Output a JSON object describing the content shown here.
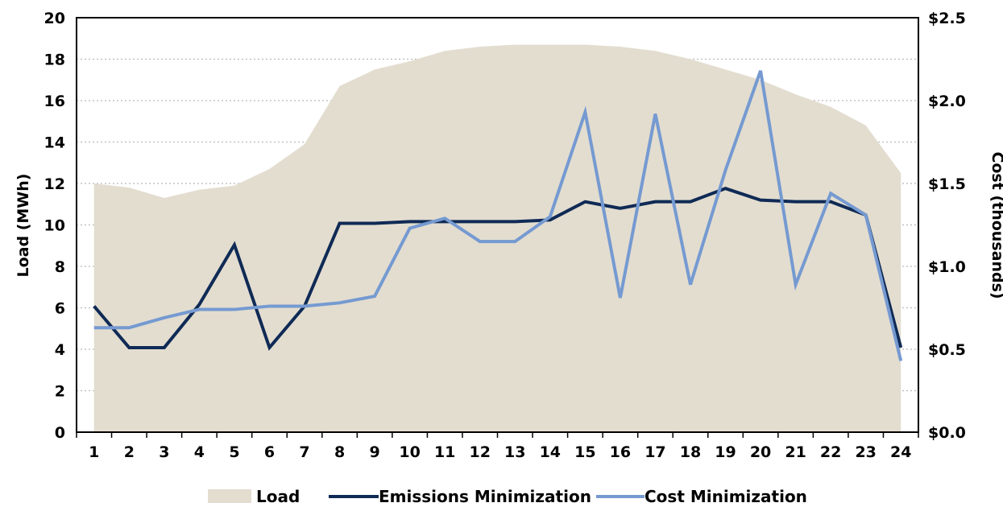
{
  "chart_data": {
    "type": "area+line",
    "x": [
      1,
      2,
      3,
      4,
      5,
      6,
      7,
      8,
      9,
      10,
      11,
      12,
      13,
      14,
      15,
      16,
      17,
      18,
      19,
      20,
      21,
      22,
      23,
      24
    ],
    "x_tick_labels": [
      "1",
      "2",
      "3",
      "4",
      "5",
      "6",
      "7",
      "8",
      "9",
      "10",
      "11",
      "12",
      "13",
      "14",
      "15",
      "16",
      "17",
      "18",
      "19",
      "20",
      "21",
      "22",
      "23",
      "24"
    ],
    "series": [
      {
        "name": "Load",
        "kind": "area",
        "axis": "left",
        "color": "#e3ddd0",
        "values": [
          12.0,
          11.8,
          11.3,
          11.7,
          11.9,
          12.7,
          13.9,
          16.7,
          17.5,
          17.9,
          18.4,
          18.6,
          18.7,
          18.7,
          18.7,
          18.6,
          18.4,
          18.0,
          17.5,
          17.0,
          16.3,
          15.7,
          14.8,
          12.5
        ]
      },
      {
        "name": "Emissions Minimization",
        "kind": "line",
        "axis": "right",
        "color": "#0f2a55",
        "values": [
          0.76,
          0.51,
          0.51,
          0.77,
          1.13,
          0.51,
          0.76,
          1.26,
          1.26,
          1.27,
          1.27,
          1.27,
          1.27,
          1.28,
          1.39,
          1.35,
          1.39,
          1.39,
          1.47,
          1.4,
          1.39,
          1.39,
          1.31,
          0.51
        ]
      },
      {
        "name": "Cost Minimization",
        "kind": "line",
        "axis": "right",
        "color": "#759ad1",
        "values": [
          0.63,
          0.63,
          0.69,
          0.74,
          0.74,
          0.76,
          0.76,
          0.78,
          0.82,
          1.23,
          1.29,
          1.15,
          1.15,
          1.3,
          1.93,
          0.81,
          1.92,
          0.89,
          1.58,
          2.18,
          0.89,
          1.44,
          1.31,
          0.43
        ]
      }
    ],
    "left_axis": {
      "label": "Load (MWh)",
      "ylim": [
        0,
        20
      ],
      "ticks": [
        0,
        2,
        4,
        6,
        8,
        10,
        12,
        14,
        16,
        18,
        20
      ],
      "tick_labels": [
        "0",
        "2",
        "4",
        "6",
        "8",
        "10",
        "12",
        "14",
        "16",
        "18",
        "20"
      ]
    },
    "right_axis": {
      "label": "Cost (thousands)",
      "ylim": [
        0,
        2.5
      ],
      "ticks": [
        0,
        0.5,
        1.0,
        1.5,
        2.0,
        2.5
      ],
      "tick_labels": [
        "$0.0",
        "$0.5",
        "$1.0",
        "$1.5",
        "$2.0",
        "$2.5"
      ]
    },
    "grid": "horizontal dotted",
    "legend_position": "bottom"
  }
}
